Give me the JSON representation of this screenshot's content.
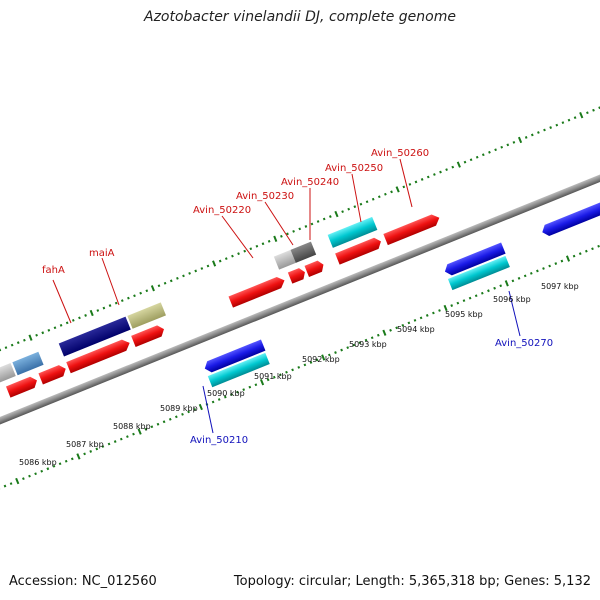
{
  "title": "Azotobacter vinelandii DJ, complete genome",
  "footer": {
    "accession": "Accession: NC_012560",
    "summary": "Topology: circular; Length: 5,365,318 bp; Genes: 5,132"
  },
  "colors": {
    "backbone": "#8c8c8c",
    "ticks": "#1a7a1a",
    "forward_label": "#cc1111",
    "reverse_label": "#1111bb",
    "cds": "#ee1111",
    "gene_forward": "#00c8d0",
    "gene_reverse": "#1a1ae6"
  },
  "axis_labels": [
    "5086 kbp",
    "5087 kbp",
    "5088 kbp",
    "5089 kbp",
    "5090 kbp",
    "5091 kbp",
    "5092 kbp",
    "5093 kbp",
    "5094 kbp",
    "5095 kbp",
    "5096 kbp",
    "5097 kbp"
  ],
  "gene_labels_forward": [
    "fahA",
    "maiA",
    "Avin_50220",
    "Avin_50230",
    "Avin_50240",
    "Avin_50250",
    "Avin_50260"
  ],
  "gene_labels_reverse": [
    "Avin_50210",
    "Avin_50270"
  ]
}
